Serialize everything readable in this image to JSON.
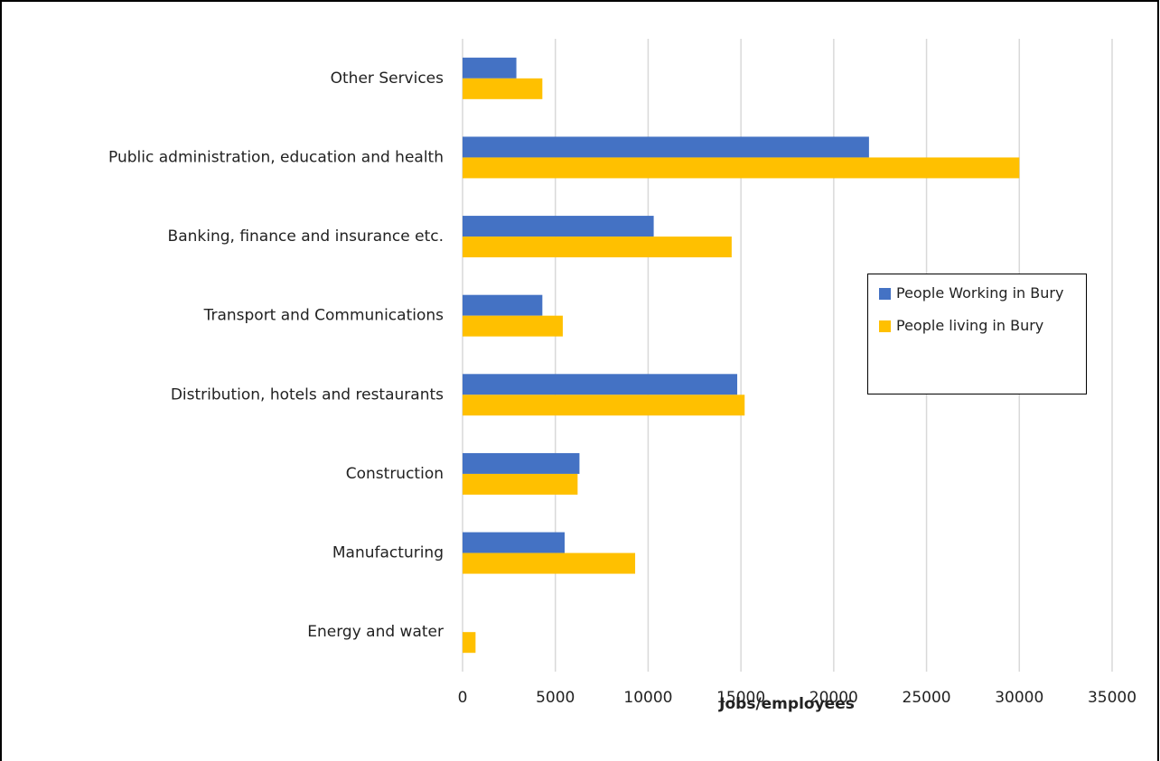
{
  "chart_data": {
    "type": "bar",
    "orientation": "horizontal",
    "x_label": "Jobs/employees",
    "categories": [
      "Other Services",
      "Public administration, education and health",
      "Banking, finance and insurance etc.",
      "Transport and Communications",
      "Distribution, hotels and restaurants",
      "Construction",
      "Manufacturing",
      "Energy and water"
    ],
    "series": [
      {
        "name": "People Working in Bury",
        "color": "#4472c4",
        "values": [
          2900,
          21900,
          10300,
          4300,
          14800,
          6300,
          5500,
          0
        ]
      },
      {
        "name": "People living in Bury",
        "color": "#ffc000",
        "values": [
          4300,
          30000,
          14500,
          5400,
          15200,
          6200,
          9300,
          700
        ]
      }
    ],
    "xlim": [
      0,
      35000
    ],
    "xticks": [
      0,
      5000,
      10000,
      15000,
      20000,
      25000,
      30000,
      35000
    ],
    "grid": true,
    "legend_position": "right"
  }
}
